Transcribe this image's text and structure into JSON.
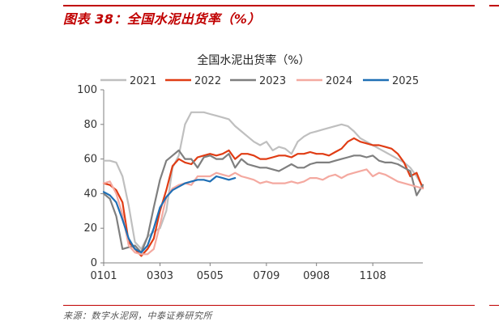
{
  "figure": {
    "header": "图表 38：全国水泥出货率（%）",
    "source": "来源：数字水泥网，中泰证券研究所"
  },
  "chart_data": {
    "type": "line",
    "title": "全国水泥出货率（%）",
    "xlabel": "",
    "ylabel": "",
    "ylim": [
      0,
      100
    ],
    "yticks": [
      0,
      20,
      40,
      60,
      80,
      100
    ],
    "xlim": [
      0,
      51
    ],
    "xtick_positions": [
      0,
      9,
      17,
      26,
      34,
      43
    ],
    "xtick_labels": [
      "0101",
      "0303",
      "0505",
      "0709",
      "0908",
      "1108"
    ],
    "grid": false,
    "legend_position": "top",
    "series": [
      {
        "name": "2021",
        "color": "#bfbfbf",
        "values": [
          59,
          59,
          58,
          50,
          33,
          12,
          8,
          15,
          18,
          20,
          30,
          55,
          62,
          80,
          87,
          87,
          87,
          86,
          85,
          84,
          83,
          79,
          76,
          73,
          70,
          68,
          70,
          65,
          67,
          66,
          63,
          70,
          73,
          75,
          76,
          77,
          78,
          79,
          80,
          79,
          76,
          72,
          70,
          68,
          66,
          64,
          62,
          60,
          58,
          55,
          50,
          44
        ]
      },
      {
        "name": "2022",
        "color": "#e03c14",
        "values": [
          46,
          45,
          42,
          35,
          12,
          8,
          4,
          8,
          14,
          30,
          42,
          56,
          60,
          58,
          57,
          61,
          62,
          63,
          62,
          63,
          65,
          60,
          63,
          63,
          62,
          60,
          60,
          61,
          62,
          62,
          61,
          63,
          63,
          64,
          63,
          63,
          62,
          64,
          66,
          70,
          72,
          70,
          69,
          68,
          68,
          67,
          66,
          63,
          58,
          50,
          52,
          43
        ]
      },
      {
        "name": "2023",
        "color": "#7f7f7f",
        "values": [
          40,
          37,
          27,
          8,
          9,
          10,
          6,
          15,
          32,
          48,
          59,
          62,
          65,
          60,
          60,
          55,
          61,
          62,
          60,
          60,
          63,
          55,
          60,
          57,
          56,
          55,
          55,
          54,
          53,
          55,
          57,
          55,
          55,
          57,
          58,
          58,
          58,
          59,
          60,
          61,
          62,
          62,
          61,
          62,
          59,
          58,
          58,
          57,
          55,
          53,
          39,
          45
        ]
      },
      {
        "name": "2024",
        "color": "#f4a9a0",
        "values": [
          46,
          47,
          40,
          28,
          10,
          6,
          5,
          5,
          8,
          22,
          38,
          43,
          45,
          46,
          45,
          50,
          50,
          50,
          52,
          51,
          50,
          52,
          50,
          49,
          48,
          46,
          47,
          46,
          46,
          46,
          47,
          46,
          47,
          49,
          49,
          48,
          50,
          51,
          49,
          51,
          52,
          53,
          54,
          50,
          52,
          51,
          49,
          47,
          46,
          45,
          44,
          43
        ]
      },
      {
        "name": "2025",
        "color": "#1f6fb5",
        "values": [
          41,
          39,
          35,
          25,
          14,
          8,
          6,
          10,
          20,
          32,
          38,
          42,
          44,
          46,
          47,
          48,
          48,
          47,
          50,
          49,
          48,
          49,
          null,
          null,
          null,
          null,
          null,
          null,
          null,
          null,
          null,
          null,
          null,
          null,
          null,
          null,
          null,
          null,
          null,
          null,
          null,
          null,
          null,
          null,
          null,
          null,
          null,
          null,
          null,
          null,
          null,
          null
        ]
      }
    ]
  }
}
